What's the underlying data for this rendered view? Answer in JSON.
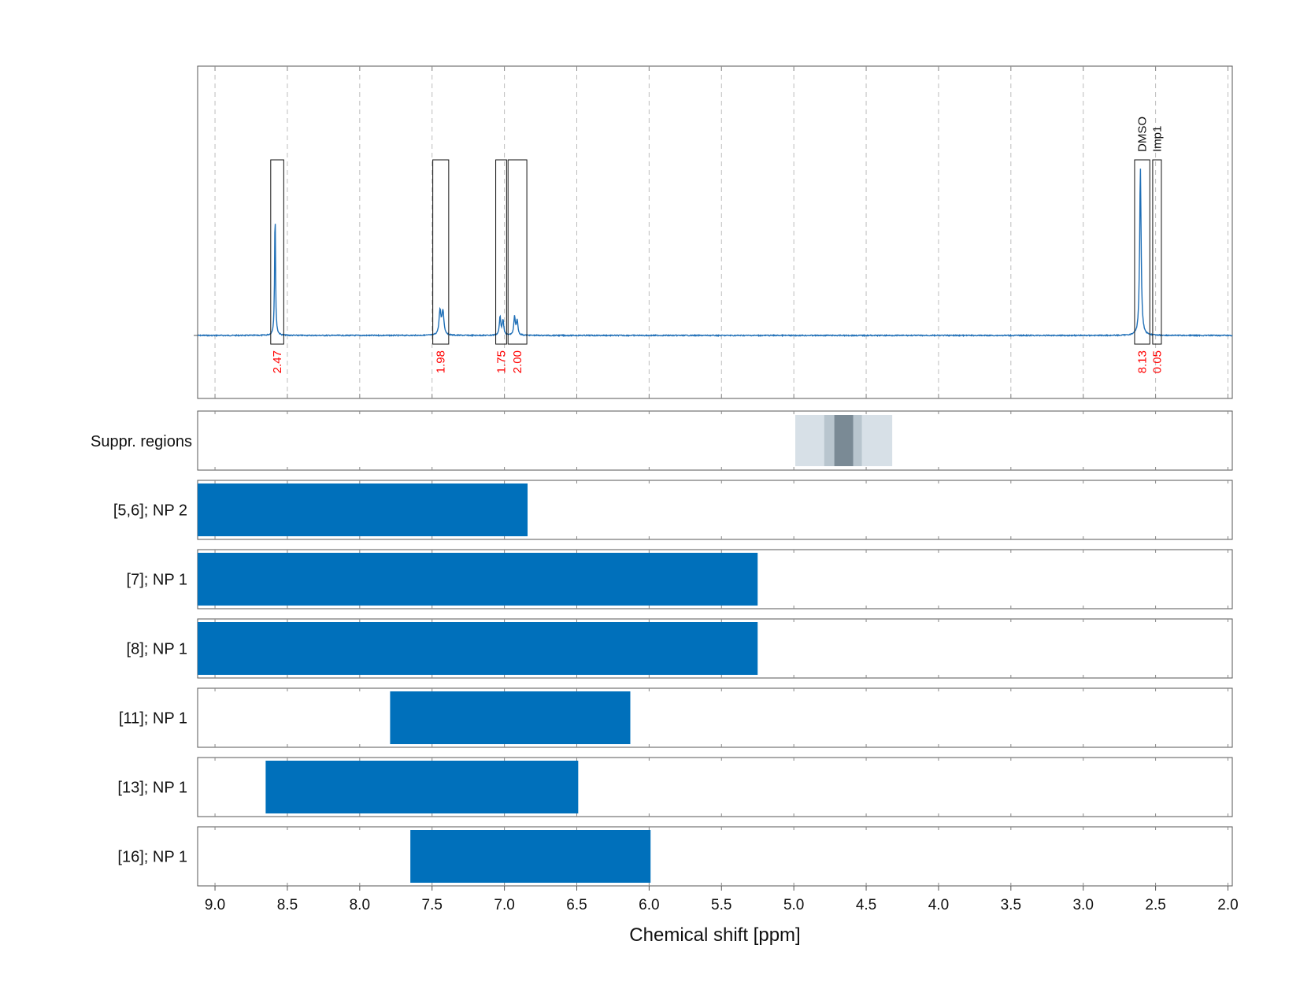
{
  "chart_data": [
    {
      "type": "line",
      "panel": "spectrum",
      "title": "",
      "ylabel": "",
      "xlim": [
        9.12,
        1.97
      ],
      "x_reversed": true,
      "grid": true,
      "line_color": "#1f6fb7",
      "baseline": 0,
      "peaks": [
        {
          "center": 8.585,
          "height": 0.73,
          "width": 0.004
        },
        {
          "center": 7.445,
          "height": 0.14,
          "width": 0.008
        },
        {
          "center": 7.425,
          "height": 0.14,
          "width": 0.008
        },
        {
          "center": 7.03,
          "height": 0.11,
          "width": 0.006
        },
        {
          "center": 7.01,
          "height": 0.09,
          "width": 0.006
        },
        {
          "center": 6.93,
          "height": 0.11,
          "width": 0.006
        },
        {
          "center": 6.912,
          "height": 0.09,
          "width": 0.006
        },
        {
          "center": 2.605,
          "height": 1.0,
          "width": 0.006
        }
      ],
      "integrals": [
        {
          "x_range": [
            8.615,
            8.525
          ],
          "value": "2.47"
        },
        {
          "x_range": [
            7.495,
            7.385
          ],
          "value": "1.98"
        },
        {
          "x_range": [
            7.06,
            6.985
          ],
          "value": "1.75"
        },
        {
          "x_range": [
            6.975,
            6.845
          ],
          "value": "2.00"
        },
        {
          "x_range": [
            2.645,
            2.54
          ],
          "value": "8.13",
          "label": "DMSO"
        },
        {
          "x_range": [
            2.52,
            2.46
          ],
          "value": "0.05",
          "label": "Imp1"
        }
      ],
      "integral_value_color": "#ff0000"
    },
    {
      "type": "heatmap",
      "panel": "suppression",
      "label": "Suppr. regions",
      "bands": [
        {
          "x_range": [
            4.99,
            4.32
          ],
          "color": "#d7e0e7"
        },
        {
          "x_range": [
            4.79,
            4.53
          ],
          "color": "#b8c5ce"
        },
        {
          "x_range": [
            4.72,
            4.59
          ],
          "color": "#7a8a95"
        }
      ]
    },
    {
      "type": "bar",
      "orientation": "horizontal",
      "panel": "assignments",
      "color": "#0070bb",
      "categories": [
        "[5,6]; NP 2",
        "[7]; NP 1",
        "[8]; NP 1",
        "[11]; NP 1",
        "[13]; NP 1",
        "[16]; NP 1"
      ],
      "ranges": [
        [
          9.12,
          6.84
        ],
        [
          9.12,
          5.25
        ],
        [
          9.12,
          5.25
        ],
        [
          7.79,
          6.13
        ],
        [
          8.65,
          6.49
        ],
        [
          7.65,
          5.99
        ]
      ]
    }
  ],
  "x_axis": {
    "ticks": [
      "9.0",
      "8.5",
      "8.0",
      "7.5",
      "7.0",
      "6.5",
      "6.0",
      "5.5",
      "5.0",
      "4.5",
      "4.0",
      "3.5",
      "3.0",
      "2.5",
      "2.0"
    ],
    "tick_values": [
      9.0,
      8.5,
      8.0,
      7.5,
      7.0,
      6.5,
      6.0,
      5.5,
      5.0,
      4.5,
      4.0,
      3.5,
      3.0,
      2.5,
      2.0
    ],
    "label": "Chemical shift [ppm]"
  }
}
